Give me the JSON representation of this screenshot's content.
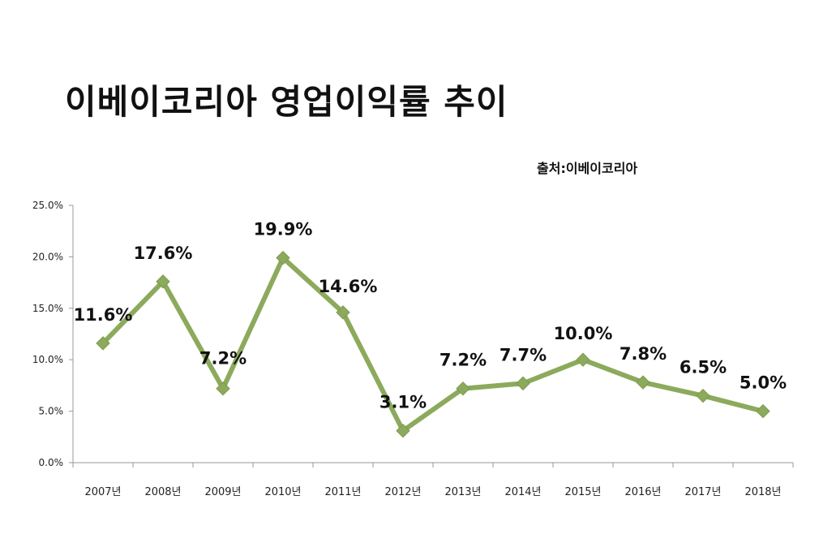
{
  "title": "이베이코리아 영업이익률 추이",
  "source": "출처:이베이코리아",
  "chart_data": {
    "type": "line",
    "title": "이베이코리아 영업이익률 추이",
    "categories": [
      "2007년",
      "2008년",
      "2009년",
      "2010년",
      "2011년",
      "2012년",
      "2013년",
      "2014년",
      "2015년",
      "2016년",
      "2017년",
      "2018년"
    ],
    "values": [
      11.6,
      17.6,
      7.2,
      19.9,
      14.6,
      3.1,
      7.2,
      7.7,
      10.0,
      7.8,
      6.5,
      5.0
    ],
    "data_labels": [
      "11.6%",
      "17.6%",
      "7.2%",
      "19.9%",
      "14.6%",
      "3.1%",
      "7.2%",
      "7.7%",
      "10.0%",
      "7.8%",
      "6.5%",
      "5.0%"
    ],
    "y_ticks": [
      "0.0%",
      "5.0%",
      "10.0%",
      "15.0%",
      "20.0%",
      "25.0%"
    ],
    "ylim": [
      0,
      25
    ],
    "xlabel": "",
    "ylabel": "",
    "grid": false,
    "legend": "none",
    "line_color": "#8CAA5C",
    "marker_color": "#8CAA5C"
  }
}
